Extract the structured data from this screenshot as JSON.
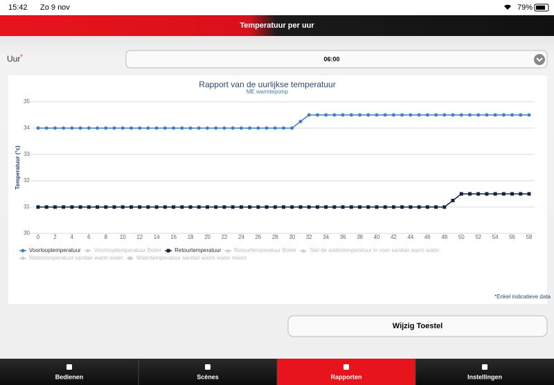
{
  "status_bar": {
    "time": "15:42",
    "date": "Zo 9 nov",
    "battery": "79%"
  },
  "header": {
    "title": "Temperatuur per uur"
  },
  "form": {
    "label": "Uur",
    "required_mark": "*",
    "selected": "06:00"
  },
  "chart_data": {
    "type": "line",
    "title": "Rapport van de uurlijkse temperatuur",
    "subtitle": "ME warmtepomp",
    "y_label": "Temperatuur (°c)",
    "x": [
      0,
      1,
      2,
      3,
      4,
      5,
      6,
      7,
      8,
      9,
      10,
      11,
      12,
      13,
      14,
      15,
      16,
      17,
      18,
      19,
      20,
      21,
      22,
      23,
      24,
      25,
      26,
      27,
      28,
      29,
      30,
      31,
      32,
      33,
      34,
      35,
      36,
      37,
      38,
      39,
      40,
      41,
      42,
      43,
      44,
      45,
      46,
      47,
      48,
      49,
      50,
      51,
      52,
      53,
      54,
      55,
      56,
      57,
      58
    ],
    "xlim": [
      0,
      58
    ],
    "xticks": [
      0,
      2,
      4,
      6,
      8,
      10,
      12,
      14,
      16,
      18,
      20,
      22,
      24,
      26,
      28,
      30,
      32,
      34,
      36,
      38,
      40,
      42,
      44,
      46,
      48,
      50,
      52,
      54,
      56,
      58
    ],
    "ylim": [
      30,
      35
    ],
    "yticks": [
      30,
      31,
      32,
      33,
      34,
      35
    ],
    "grid": true,
    "series": [
      {
        "name": "Voorlooptemperatuur",
        "color": "#3a7fd5",
        "marker": "circle",
        "values": [
          34,
          34,
          34,
          34,
          34,
          34,
          34,
          34,
          34,
          34,
          34,
          34,
          34,
          34,
          34,
          34,
          34,
          34,
          34,
          34,
          34,
          34,
          34,
          34,
          34,
          34,
          34,
          34,
          34,
          34,
          34,
          34.25,
          34.5,
          34.5,
          34.5,
          34.5,
          34.5,
          34.5,
          34.5,
          34.5,
          34.5,
          34.5,
          34.5,
          34.5,
          34.5,
          34.5,
          34.5,
          34.5,
          34.5,
          34.5,
          34.5,
          34.5,
          34.5,
          34.5,
          34.5,
          34.5,
          34.5,
          34.5,
          34.5
        ]
      },
      {
        "name": "Voorlooptemperatuur Boiler",
        "color": "#cccccc",
        "marker": "diamond",
        "hidden": true
      },
      {
        "name": "Retourtemperatuur",
        "color": "#0f2340",
        "marker": "square",
        "values": [
          31,
          31,
          31,
          31,
          31,
          31,
          31,
          31,
          31,
          31,
          31,
          31,
          31,
          31,
          31,
          31,
          31,
          31,
          31,
          31,
          31,
          31,
          31,
          31,
          31,
          31,
          31,
          31,
          31,
          31,
          31,
          31,
          31,
          31,
          31,
          31,
          31,
          31,
          31,
          31,
          31,
          31,
          31,
          31,
          31,
          31,
          31,
          31,
          31,
          31.25,
          31.5,
          31.5,
          31.5,
          31.5,
          31.5,
          31.5,
          31.5,
          31.5,
          31.5
        ]
      },
      {
        "name": "Retourtemperatuur Boiler",
        "color": "#cccccc",
        "marker": "triangle",
        "hidden": true
      },
      {
        "name": "Stel de watertemperatuur in voor sanitair warm water",
        "color": "#cccccc",
        "marker": "triangle",
        "hidden": true
      },
      {
        "name": "Watertemperatuur sanitair warm water",
        "color": "#cccccc",
        "marker": "circle",
        "hidden": true
      },
      {
        "name": "Watertemperatuur sanitair warm water mixen",
        "color": "#cccccc",
        "marker": "square",
        "hidden": true
      }
    ]
  },
  "footnote": "*Enkel indicatieve data",
  "button": "Wijzig Toestel",
  "tabs": [
    {
      "label": "Bedienen"
    },
    {
      "label": "Scènes"
    },
    {
      "label": "Rapporten",
      "active": true
    },
    {
      "label": "Instellingen"
    }
  ]
}
